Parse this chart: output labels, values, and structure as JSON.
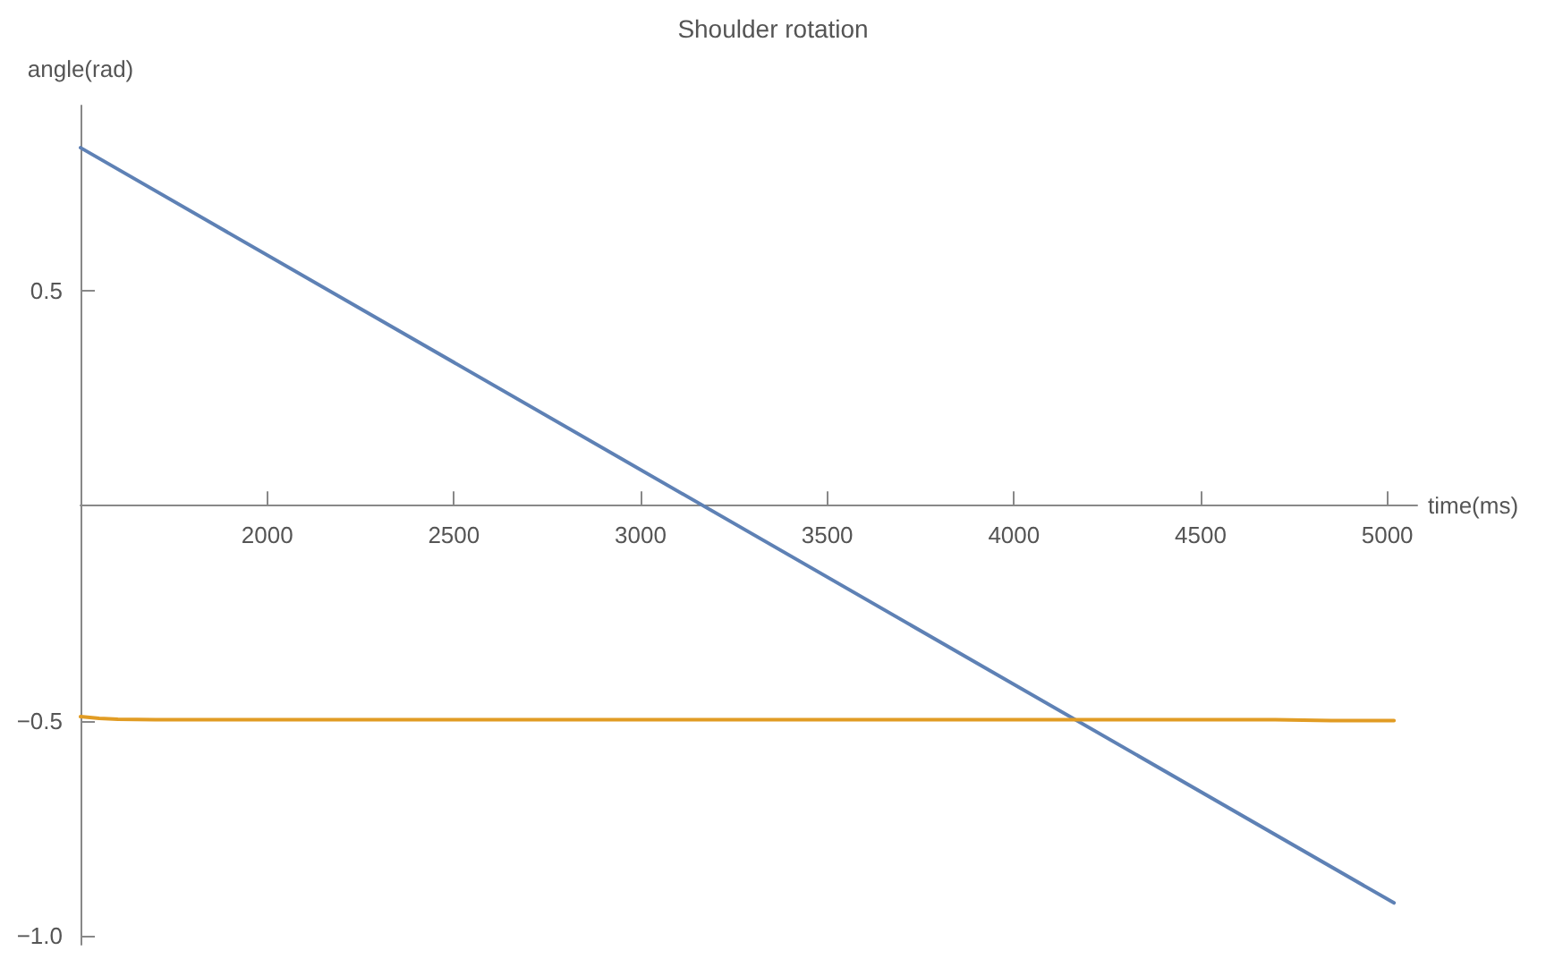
{
  "chart_data": {
    "type": "line",
    "title": "Shoulder rotation",
    "xlabel": "time(ms)",
    "ylabel": "angle(rad)",
    "xlim": [
      1500,
      5080
    ],
    "xticks": [
      2000,
      2500,
      3000,
      3500,
      4000,
      4500,
      5000
    ],
    "ylim": [
      -1.02,
      0.93
    ],
    "yticks": [
      {
        "value": -1.0,
        "label": "−1.0"
      },
      {
        "value": -0.5,
        "label": "−0.5"
      },
      {
        "value": 0.5,
        "label": "0.5"
      }
    ],
    "grid": false,
    "marker": "none",
    "line_style": "solid",
    "series": [
      {
        "color": "#5e81b5",
        "x": [
          1500,
          5018
        ],
        "values": [
          0.832,
          -0.923
        ]
      },
      {
        "color": "#e19c24",
        "x": [
          1500,
          1550,
          1600,
          1700,
          2000,
          3000,
          4000,
          4700,
          4850,
          5018
        ],
        "values": [
          -0.49,
          -0.494,
          -0.496,
          -0.497,
          -0.497,
          -0.497,
          -0.497,
          -0.497,
          -0.499,
          -0.499
        ]
      }
    ]
  }
}
